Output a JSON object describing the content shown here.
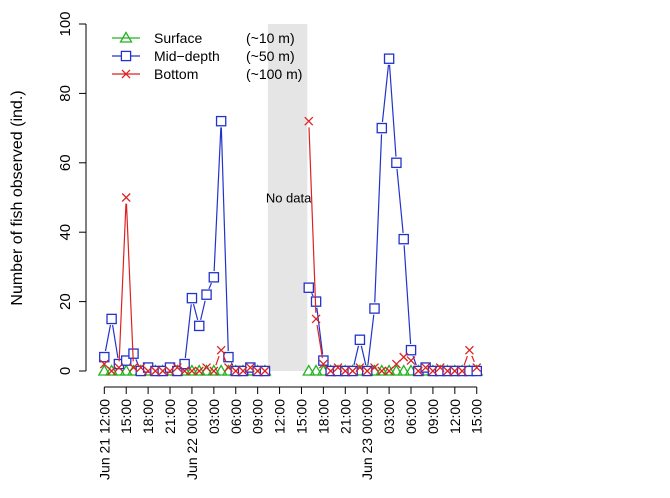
{
  "chart_data": {
    "type": "line",
    "ylabel": "Number of fish observed (ind.)",
    "ylim": [
      0,
      100
    ],
    "yticks": [
      0,
      20,
      40,
      60,
      80,
      100
    ],
    "x_unit": "hours since Jun 21 12:00",
    "xlim": [
      -1,
      75
    ],
    "xticks": [
      {
        "x": 0,
        "label": "Jun 21 12:00"
      },
      {
        "x": 3,
        "label": "15:00"
      },
      {
        "x": 6,
        "label": "18:00"
      },
      {
        "x": 9,
        "label": "21:00"
      },
      {
        "x": 12,
        "label": "Jun 22 00:00"
      },
      {
        "x": 15,
        "label": "03:00"
      },
      {
        "x": 18,
        "label": "06:00"
      },
      {
        "x": 21,
        "label": "09:00"
      },
      {
        "x": 24,
        "label": "12:00"
      },
      {
        "x": 27,
        "label": "15:00"
      },
      {
        "x": 30,
        "label": "18:00"
      },
      {
        "x": 33,
        "label": "21:00"
      },
      {
        "x": 36,
        "label": "Jun 23 00:00"
      },
      {
        "x": 39,
        "label": "03:00"
      },
      {
        "x": 42,
        "label": "06:00"
      },
      {
        "x": 45,
        "label": "09:00"
      },
      {
        "x": 48,
        "label": "12:00"
      },
      {
        "x": 51,
        "label": "15:00"
      }
    ],
    "gap": {
      "x_start": 22.4,
      "x_end": 27.8,
      "label": "No data"
    },
    "legend_position": "top-left",
    "series": [
      {
        "name": "Surface",
        "depth_note": "(~10 m)",
        "color": "#22b522",
        "marker": "triangle",
        "segments": [
          {
            "x": [
              0,
              1,
              2,
              3,
              4,
              5,
              6,
              7,
              8,
              9,
              10,
              11,
              12,
              13,
              14,
              15,
              16,
              17,
              18,
              19,
              20,
              21,
              22
            ],
            "y": [
              0,
              0,
              0,
              0,
              0,
              0,
              0,
              0,
              0,
              0,
              0,
              0,
              0,
              0,
              0,
              0,
              0,
              0,
              0,
              0,
              0,
              0,
              0
            ]
          },
          {
            "x": [
              28,
              29,
              30,
              31,
              32,
              33,
              34,
              35,
              36,
              37,
              38,
              39,
              40,
              41,
              42,
              43,
              44,
              45,
              46,
              47,
              48,
              49,
              50,
              51
            ],
            "y": [
              0,
              0,
              0,
              0,
              0,
              0,
              0,
              0,
              0,
              0,
              0,
              0,
              0,
              0,
              0,
              0,
              0,
              0,
              0,
              0,
              0,
              0,
              0,
              0
            ]
          }
        ]
      },
      {
        "name": "Mid−depth",
        "depth_note": "(~50 m)",
        "color": "#2233cc",
        "marker": "square",
        "segments": [
          {
            "x": [
              0,
              1,
              2,
              3,
              4,
              5,
              6,
              7,
              8,
              9,
              10,
              11,
              12,
              13,
              14,
              15,
              16,
              17,
              18,
              19,
              20,
              21,
              22
            ],
            "y": [
              4,
              15,
              2,
              3,
              5,
              0,
              1,
              0,
              0,
              1,
              0,
              2,
              21,
              13,
              22,
              27,
              72,
              4,
              0,
              0,
              1,
              0,
              0
            ]
          },
          {
            "x": [
              28,
              29,
              30,
              31,
              32,
              33,
              34,
              35,
              36,
              37,
              38,
              39,
              40,
              41,
              42,
              43,
              44,
              45,
              46,
              47,
              48,
              49,
              50,
              51
            ],
            "y": [
              24,
              20,
              3,
              0,
              0,
              0,
              0,
              9,
              0,
              18,
              70,
              90,
              60,
              38,
              6,
              0,
              1,
              0,
              0,
              0,
              0,
              0,
              0,
              0
            ]
          }
        ]
      },
      {
        "name": "Bottom",
        "depth_note": "(~100 m)",
        "color": "#dd2222",
        "marker": "x",
        "segments": [
          {
            "x": [
              0,
              1,
              2,
              3,
              4,
              5,
              6,
              7,
              8,
              9,
              10,
              11,
              12,
              13,
              14,
              15,
              16,
              17,
              18,
              19,
              20,
              21,
              22
            ],
            "y": [
              2,
              0,
              1,
              50,
              1,
              1,
              0,
              0,
              0,
              0,
              1,
              0,
              0,
              0,
              1,
              0,
              6,
              1,
              0,
              0,
              1,
              0,
              0
            ]
          },
          {
            "x": [
              28,
              29,
              30,
              31,
              32,
              33,
              34,
              35,
              36,
              37,
              38,
              39,
              40,
              41,
              42,
              43,
              44,
              45,
              46,
              47,
              48,
              49,
              50,
              51
            ],
            "y": [
              72,
              15,
              2,
              0,
              1,
              0,
              0,
              1,
              0,
              1,
              0,
              0,
              2,
              4,
              3,
              0,
              1,
              0,
              1,
              0,
              0,
              0,
              6,
              1
            ]
          }
        ]
      }
    ]
  }
}
